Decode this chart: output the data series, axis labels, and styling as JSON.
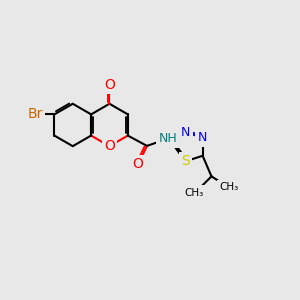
{
  "bg_color": "#e8e8e8",
  "bond_color": "#000000",
  "bond_width": 1.5,
  "figsize": [
    3.0,
    3.0
  ],
  "dpi": 100,
  "colors": {
    "O": "#ff0000",
    "N": "#0000ff",
    "S": "#cccc00",
    "Br": "#cc6600",
    "NH": "#008080",
    "C": "#000000"
  }
}
